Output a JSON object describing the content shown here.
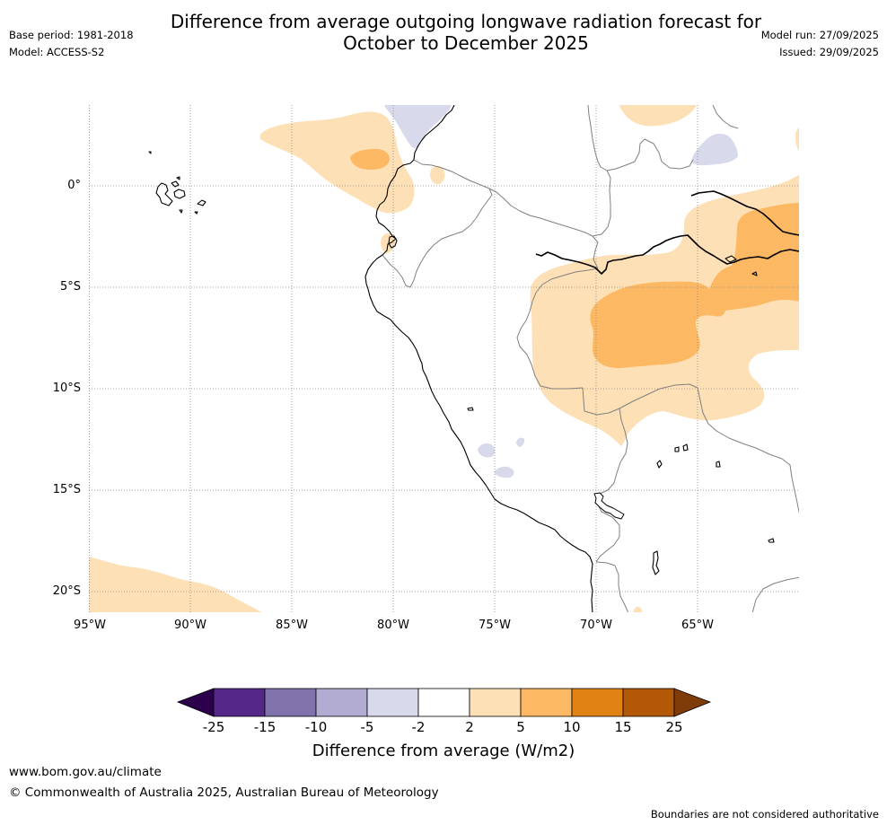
{
  "title": {
    "line1": "Difference from average outgoing longwave radiation forecast for",
    "line2": "October to December 2025"
  },
  "info_left": {
    "base_period": "Base period: 1981-2018",
    "model": "Model: ACCESS-S2"
  },
  "info_right": {
    "model_run": "Model run: 27/09/2025",
    "issued": "Issued: 29/09/2025"
  },
  "map": {
    "lat_labels": [
      "0°",
      "5°S",
      "10°S",
      "15°S",
      "20°S"
    ],
    "lon_labels": [
      "95°W",
      "90°W",
      "85°W",
      "80°W",
      "75°W",
      "70°W",
      "65°W"
    ],
    "fill_colors": {
      "pos_2_5": "#fee0b6",
      "pos_5_10": "#fdb863",
      "neg_5_2": "#d8daeb"
    },
    "coastline_color": "#000000",
    "border_color": "#808080",
    "gridline_color": "#888888"
  },
  "colorbar": {
    "ticks": [
      "-25",
      "-15",
      "-10",
      "-5",
      "-2",
      "2",
      "5",
      "10",
      "15",
      "25"
    ],
    "colors": {
      "under": "#2d004b",
      "bins": [
        "#542788",
        "#8073ac",
        "#b2abd2",
        "#d8daeb",
        "#ffffff",
        "#fee0b6",
        "#fdb863",
        "#e08214",
        "#b35806"
      ],
      "over": "#7f3b08"
    },
    "label": "Difference from average (W/m2)"
  },
  "footer": {
    "url": "www.bom.gov.au/climate",
    "copyright": "© Commonwealth of Australia 2025, Australian Bureau of Meteorology",
    "disclaimer": "Boundaries are not considered authoritative"
  }
}
